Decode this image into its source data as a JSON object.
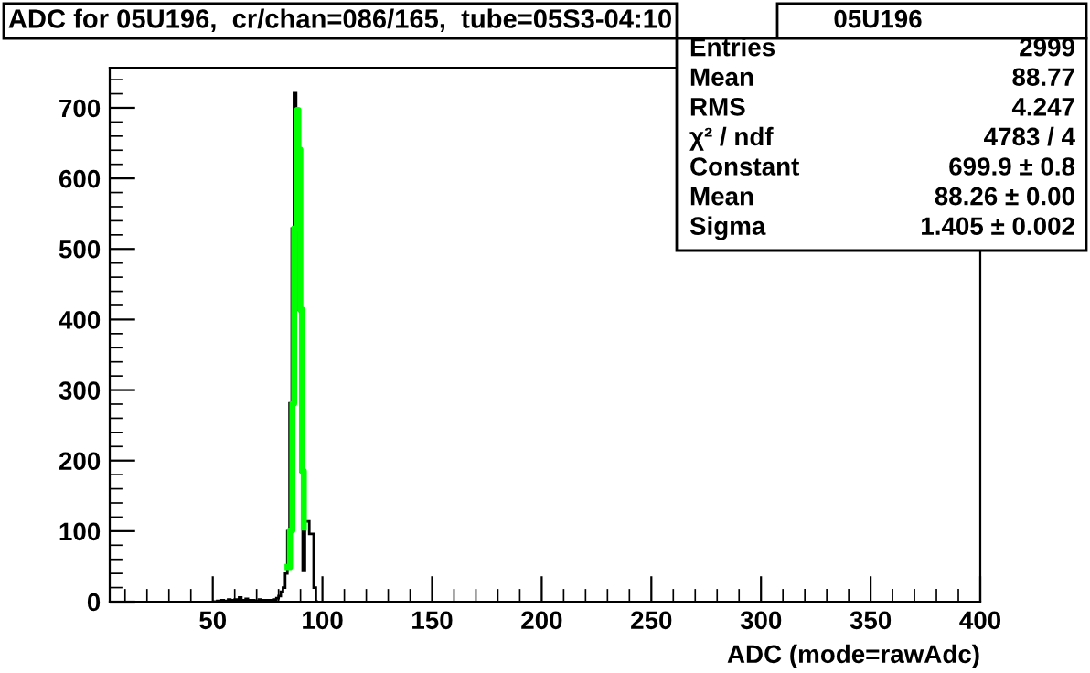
{
  "chart_data": {
    "type": "histogram",
    "title": "ADC for 05U196,  cr/chan=086/165,  tube=05S3-04:10",
    "xlabel": "ADC (mode=rawAdc)",
    "xlim": [
      3,
      400
    ],
    "xticks": [
      50,
      100,
      150,
      200,
      250,
      300,
      350,
      400
    ],
    "ylim": [
      0,
      757
    ],
    "yticks": [
      0,
      100,
      200,
      300,
      400,
      500,
      600,
      700
    ],
    "grid": false,
    "legend": false,
    "series": [
      {
        "color": "#000000",
        "bins": [
          50,
          51,
          52,
          53,
          54,
          55,
          56,
          57,
          58,
          59,
          60,
          61,
          62,
          63,
          64,
          65,
          66,
          67,
          68,
          69,
          70,
          71,
          72,
          73,
          74,
          75,
          76,
          77,
          78,
          79,
          80,
          81,
          82,
          83,
          84,
          85,
          86,
          87,
          88,
          89,
          90,
          91,
          92,
          93,
          94,
          95,
          96,
          97,
          98
        ],
        "values": [
          0,
          0,
          1,
          1,
          2,
          1,
          1,
          3,
          1,
          2,
          3,
          1,
          6,
          2,
          1,
          4,
          2,
          1,
          2,
          1,
          1,
          3,
          1,
          2,
          1,
          2,
          1,
          2,
          3,
          5,
          8,
          14,
          20,
          40,
          100,
          281,
          529,
          721,
          641,
          414,
          185,
          45,
          114,
          114,
          96,
          96,
          20,
          0
        ]
      },
      {
        "type": "step",
        "color": "#00ff00",
        "x": [
          84.1,
          85.2,
          86.3,
          87.1,
          88.5,
          89.0,
          89.9,
          90.7,
          91.5
        ],
        "values": [
          49,
          101,
          281,
          529,
          697,
          641,
          414,
          185,
          105
        ]
      }
    ],
    "annotations": [
      "05U196",
      "Entries",
      "2999",
      "Mean",
      "88.77",
      "RMS",
      "4.247",
      "χ² / ndf",
      "4783 / 4",
      "Constant",
      "699.9 ± 0.8",
      "Mean",
      "88.26 ± 0.00",
      "Sigma",
      "1.405 ± 0.002"
    ]
  }
}
